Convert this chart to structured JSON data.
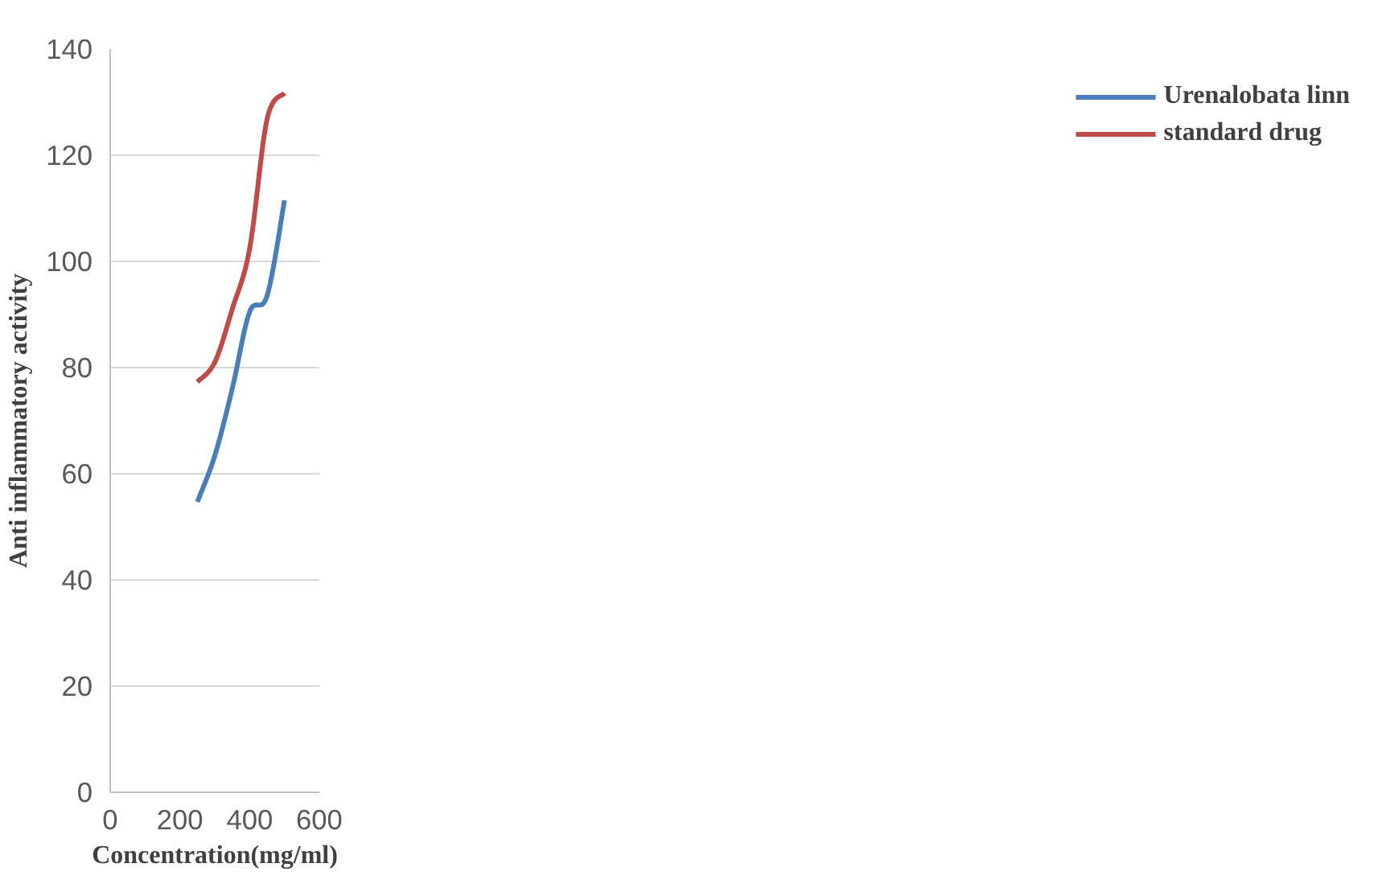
{
  "chart_data": {
    "type": "line",
    "xlabel": "Concentration(mg/ml)",
    "ylabel": "Anti inflammatory activity",
    "x": [
      250,
      300,
      350,
      400,
      450,
      500
    ],
    "series": [
      {
        "name": "Urenalobata linn",
        "color": "#4a7ebb",
        "values": [
          54.7,
          63.4,
          76,
          90.5,
          93.5,
          111.5
        ]
      },
      {
        "name": "standard drug",
        "color": "#be4b48",
        "values": [
          77.3,
          81,
          91,
          102.4,
          126.8,
          131.7
        ]
      }
    ],
    "xlim": [
      0,
      600
    ],
    "xticks": [
      0,
      200,
      400,
      600
    ],
    "ylim": [
      0,
      140
    ],
    "yticks": [
      0,
      20,
      40,
      60,
      80,
      100,
      120,
      140
    ],
    "grid": "y",
    "legend": "right",
    "marker": "none",
    "line_style": "solid"
  }
}
